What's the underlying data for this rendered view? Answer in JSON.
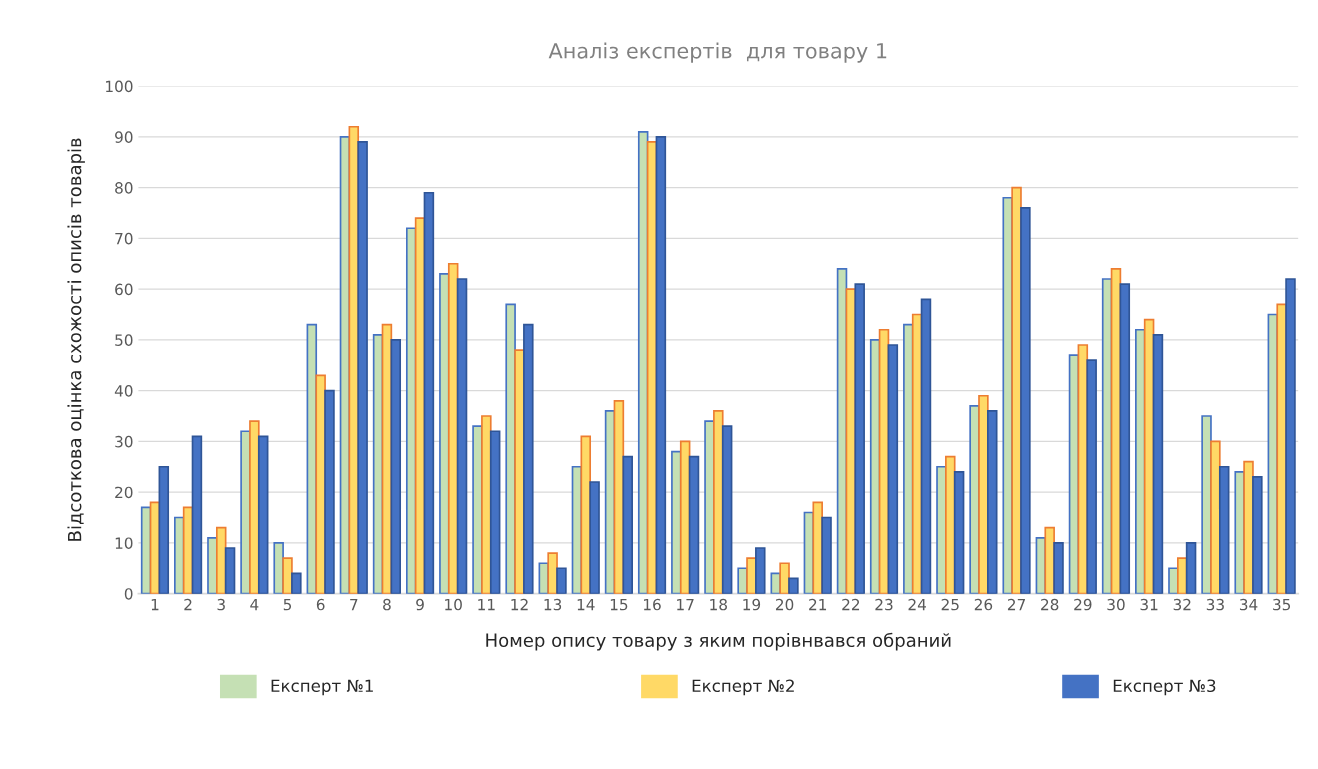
{
  "chart_data": {
    "type": "bar",
    "title": "Аналіз експертів  для товару 1",
    "xlabel": "Номер опису товару з яким порівнвався обраний",
    "ylabel": "Відсоткова оцінка схожості описів товарів",
    "categories": [
      "1",
      "2",
      "3",
      "4",
      "5",
      "6",
      "7",
      "8",
      "9",
      "10",
      "11",
      "12",
      "13",
      "14",
      "15",
      "16",
      "17",
      "18",
      "19",
      "20",
      "21",
      "22",
      "23",
      "24",
      "25",
      "26",
      "27",
      "28",
      "29",
      "30",
      "31",
      "32",
      "33",
      "34",
      "35"
    ],
    "series": [
      {
        "name": "Експерт №1",
        "color": "#c5e0b4",
        "values": [
          17,
          15,
          11,
          32,
          10,
          53,
          90,
          51,
          72,
          63,
          33,
          57,
          6,
          25,
          36,
          91,
          28,
          34,
          5,
          4,
          16,
          64,
          50,
          53,
          25,
          37,
          78,
          11,
          47,
          62,
          52,
          5,
          35,
          24,
          55
        ]
      },
      {
        "name": "Експерт №2",
        "color": "#ffd966",
        "values": [
          18,
          17,
          13,
          34,
          7,
          43,
          92,
          53,
          74,
          65,
          35,
          48,
          8,
          31,
          38,
          89,
          30,
          36,
          7,
          6,
          18,
          60,
          52,
          55,
          27,
          39,
          80,
          13,
          49,
          64,
          54,
          7,
          30,
          26,
          57
        ]
      },
      {
        "name": "Експерт №3",
        "color": "#4472c4",
        "values": [
          25,
          31,
          9,
          31,
          4,
          40,
          89,
          50,
          79,
          62,
          32,
          53,
          5,
          22,
          27,
          90,
          27,
          33,
          9,
          3,
          15,
          61,
          49,
          58,
          24,
          36,
          76,
          10,
          46,
          61,
          51,
          10,
          25,
          23,
          62
        ]
      }
    ],
    "ylim": [
      0,
      100
    ],
    "yticks": [
      0,
      10,
      20,
      30,
      40,
      50,
      60,
      70,
      80,
      90,
      100
    ],
    "grid": "y",
    "legend": "bottom"
  }
}
